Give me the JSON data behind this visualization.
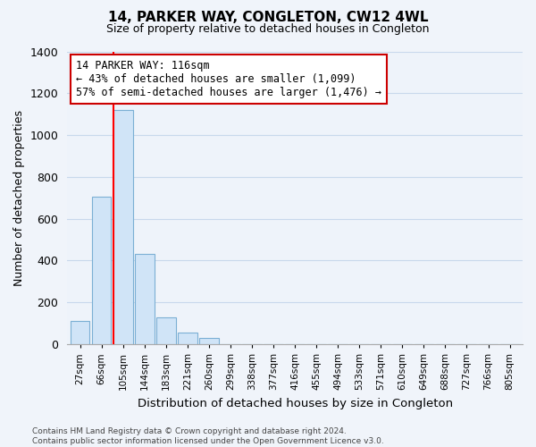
{
  "title": "14, PARKER WAY, CONGLETON, CW12 4WL",
  "subtitle": "Size of property relative to detached houses in Congleton",
  "xlabel": "Distribution of detached houses by size in Congleton",
  "ylabel": "Number of detached properties",
  "footer_line1": "Contains HM Land Registry data © Crown copyright and database right 2024.",
  "footer_line2": "Contains public sector information licensed under the Open Government Licence v3.0.",
  "bar_labels": [
    "27sqm",
    "66sqm",
    "105sqm",
    "144sqm",
    "183sqm",
    "221sqm",
    "260sqm",
    "299sqm",
    "338sqm",
    "377sqm",
    "416sqm",
    "455sqm",
    "494sqm",
    "533sqm",
    "571sqm",
    "610sqm",
    "649sqm",
    "688sqm",
    "727sqm",
    "766sqm",
    "805sqm"
  ],
  "bar_values": [
    110,
    705,
    1120,
    430,
    130,
    55,
    30,
    0,
    0,
    0,
    0,
    0,
    0,
    0,
    0,
    0,
    0,
    0,
    0,
    0,
    0
  ],
  "bar_color": "#d0e4f7",
  "bar_edge_color": "#7bafd4",
  "annotation_title": "14 PARKER WAY: 116sqm",
  "annotation_line1": "← 43% of detached houses are smaller (1,099)",
  "annotation_line2": "57% of semi-detached houses are larger (1,476) →",
  "annotation_box_color": "#ffffff",
  "annotation_box_edge": "#cc0000",
  "red_line_bin": 2,
  "ylim": [
    0,
    1400
  ],
  "yticks": [
    0,
    200,
    400,
    600,
    800,
    1000,
    1200,
    1400
  ],
  "grid_color": "#c8d8ec",
  "background_color": "#f0f4fa",
  "plot_bg_color": "#eef3fa",
  "title_fontsize": 11,
  "subtitle_fontsize": 9
}
